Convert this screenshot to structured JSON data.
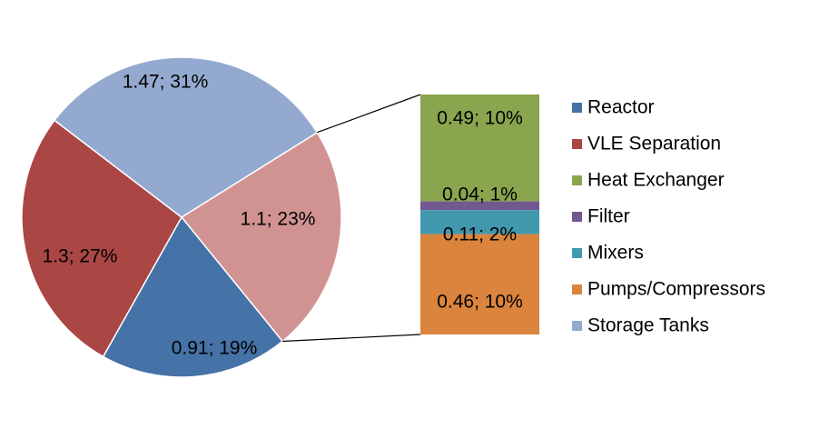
{
  "chart_data": {
    "type": "pie",
    "subtype": "bar-of-pie",
    "title": "",
    "label_format": "value; percent",
    "pie_slices": [
      {
        "key": "reactor",
        "name": "Reactor",
        "value": 0.91,
        "label": "0.91; 19%",
        "color": "#4572A7"
      },
      {
        "key": "vle",
        "name": "VLE Separation",
        "value": 1.3,
        "label": "1.3; 27%",
        "color": "#AA4643"
      },
      {
        "key": "storage",
        "name": "Storage Tanks",
        "value": 1.47,
        "label": "1.47; 31%",
        "color": "#93A9CF"
      },
      {
        "key": "other",
        "name": "",
        "value": 1.1,
        "label": "1.1; 23%",
        "color": "#D19392"
      }
    ],
    "bar_segments": [
      {
        "key": "heat",
        "name": "Heat Exchanger",
        "value": 0.49,
        "label": "0.49; 10%",
        "color": "#89A54E"
      },
      {
        "key": "filter",
        "name": "Filter",
        "value": 0.04,
        "label": "0.04; 1%",
        "color": "#71588F"
      },
      {
        "key": "mixers",
        "name": "Mixers",
        "value": 0.11,
        "label": "0.11; 2%",
        "color": "#4198AF"
      },
      {
        "key": "pumps",
        "name": "Pumps/Compressors",
        "value": 0.46,
        "label": "0.46; 10%",
        "color": "#DB843D"
      }
    ],
    "legend": [
      {
        "key": "reactor",
        "label": "Reactor",
        "color": "#4572A7"
      },
      {
        "key": "vle",
        "label": "VLE Separation",
        "color": "#AA4643"
      },
      {
        "key": "heat",
        "label": "Heat Exchanger",
        "color": "#89A54E"
      },
      {
        "key": "filter",
        "label": "Filter",
        "color": "#71588F"
      },
      {
        "key": "mixers",
        "label": "Mixers",
        "color": "#4198AF"
      },
      {
        "key": "pumps",
        "label": "Pumps/Compressors",
        "color": "#DB843D"
      },
      {
        "key": "storage",
        "label": "Storage Tanks",
        "color": "#93A9CF"
      }
    ],
    "legend_position": "right"
  }
}
